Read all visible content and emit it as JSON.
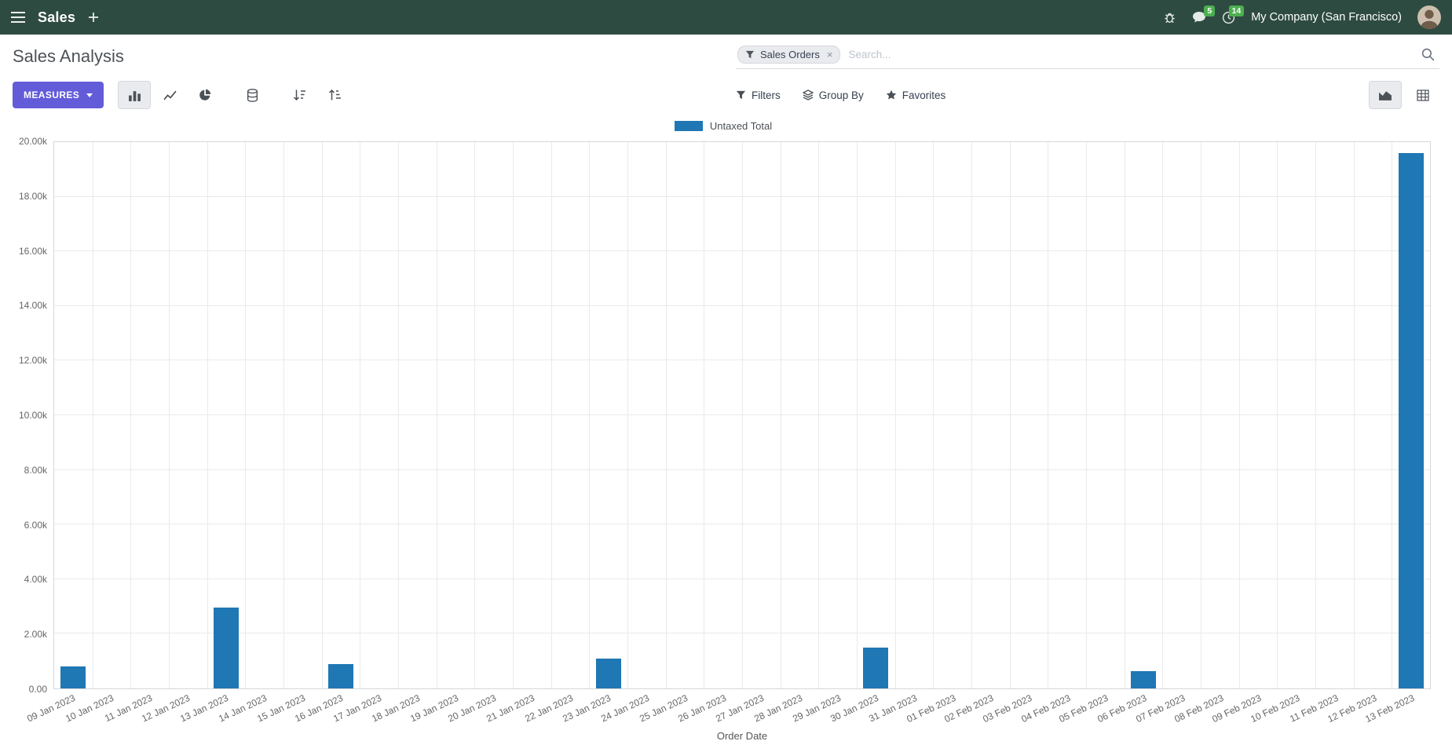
{
  "navbar": {
    "app_name": "Sales",
    "company": "My Company (San Francisco)",
    "badges": {
      "messages": "5",
      "activities": "14"
    }
  },
  "control_panel": {
    "title": "Sales Analysis",
    "search": {
      "facet_label": "Sales Orders",
      "remove_facet": "×",
      "placeholder": "Search..."
    },
    "buttons": {
      "measures": "MEASURES",
      "filters": "Filters",
      "group_by": "Group By",
      "favorites": "Favorites"
    }
  },
  "chart_data": {
    "type": "bar",
    "title": "",
    "legend": [
      "Untaxed Total"
    ],
    "legend_position": "top",
    "series_color": "#1f77b4",
    "xlabel": "Order Date",
    "ylabel": "",
    "ylim": [
      0,
      20000
    ],
    "ytick_step": 2000,
    "grid": true,
    "categories": [
      "09 Jan 2023",
      "10 Jan 2023",
      "11 Jan 2023",
      "12 Jan 2023",
      "13 Jan 2023",
      "14 Jan 2023",
      "15 Jan 2023",
      "16 Jan 2023",
      "17 Jan 2023",
      "18 Jan 2023",
      "19 Jan 2023",
      "20 Jan 2023",
      "21 Jan 2023",
      "22 Jan 2023",
      "23 Jan 2023",
      "24 Jan 2023",
      "25 Jan 2023",
      "26 Jan 2023",
      "27 Jan 2023",
      "28 Jan 2023",
      "29 Jan 2023",
      "30 Jan 2023",
      "31 Jan 2023",
      "01 Feb 2023",
      "02 Feb 2023",
      "03 Feb 2023",
      "04 Feb 2023",
      "05 Feb 2023",
      "06 Feb 2023",
      "07 Feb 2023",
      "08 Feb 2023",
      "09 Feb 2023",
      "10 Feb 2023",
      "11 Feb 2023",
      "12 Feb 2023",
      "13 Feb 2023"
    ],
    "series": [
      {
        "name": "Untaxed Total",
        "values": [
          800,
          0,
          0,
          0,
          2950,
          0,
          0,
          900,
          0,
          0,
          0,
          0,
          0,
          0,
          1080,
          0,
          0,
          0,
          0,
          0,
          0,
          1500,
          0,
          0,
          0,
          0,
          0,
          0,
          620,
          0,
          0,
          0,
          0,
          0,
          0,
          19600
        ]
      }
    ]
  }
}
